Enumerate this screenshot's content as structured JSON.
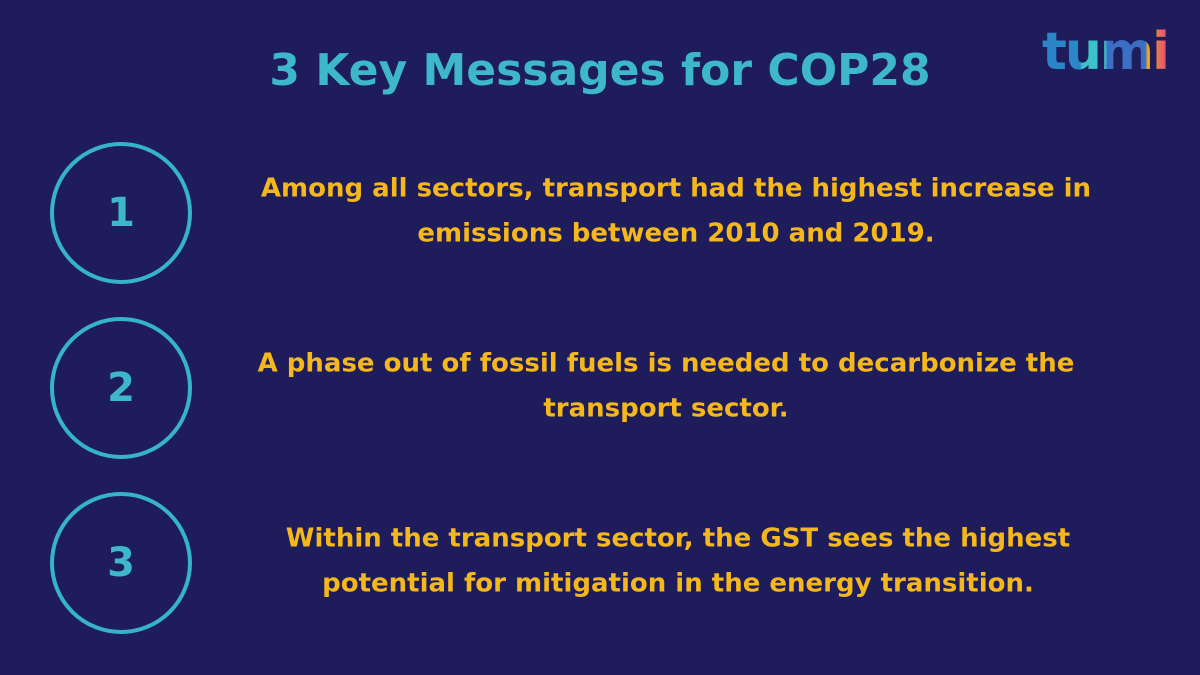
{
  "header": {
    "title": "3 Key Messages for COP28",
    "logo": "tumi"
  },
  "messages": [
    {
      "number": "1",
      "lines": [
        "Among all sectors, transport had the highest increase in",
        "emissions between 2010 and 2019."
      ]
    },
    {
      "number": "2",
      "lines": [
        "A phase out of fossil fuels is needed to decarbonize the",
        "transport sector."
      ]
    },
    {
      "number": "3",
      "lines": [
        "Within the transport sector, the GST sees the highest",
        "potential for mitigation in the energy transition."
      ]
    }
  ]
}
